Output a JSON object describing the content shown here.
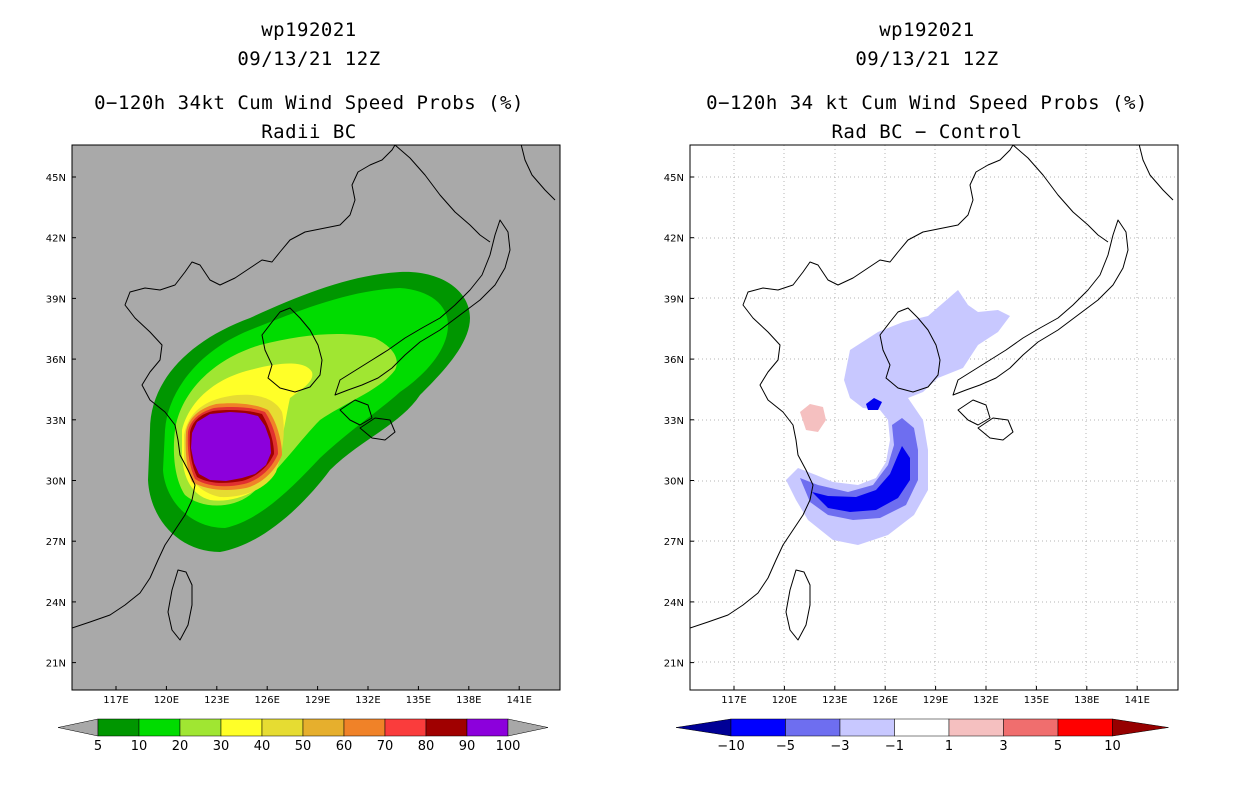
{
  "left": {
    "title_id": "wp192021",
    "title_date": "09/13/21 12Z",
    "title_main": "0−120h 34kt Cum Wind Speed Probs (%)",
    "title_sub": "Radii BC",
    "lat_labels": [
      "45N",
      "42N",
      "39N",
      "36N",
      "33N",
      "30N",
      "27N",
      "24N",
      "21N"
    ],
    "lon_labels": [
      "117E",
      "120E",
      "123E",
      "126E",
      "129E",
      "132E",
      "135E",
      "138E",
      "141E"
    ],
    "colorbar": {
      "labels": [
        "5",
        "10",
        "20",
        "30",
        "40",
        "50",
        "60",
        "70",
        "80",
        "90",
        "100"
      ],
      "colors": [
        "#009600",
        "#00dc00",
        "#a0e632",
        "#ffff28",
        "#e6dc32",
        "#e6af2d",
        "#f08228",
        "#fa3c3c",
        "#a00000",
        "#8c00dc"
      ],
      "arrow_color": "#a8a8a8"
    },
    "background_color": "#a9a9a9"
  },
  "right": {
    "title_id": "wp192021",
    "title_date": "09/13/21 12Z",
    "title_main": "0−120h 34 kt Cum Wind Speed Probs (%)",
    "title_sub": "Rad BC − Control",
    "lat_labels": [
      "45N",
      "42N",
      "39N",
      "36N",
      "33N",
      "30N",
      "27N",
      "24N",
      "21N"
    ],
    "lon_labels": [
      "117E",
      "120E",
      "123E",
      "126E",
      "129E",
      "132E",
      "135E",
      "138E",
      "141E"
    ],
    "colorbar": {
      "labels": [
        "−10",
        "−5",
        "−3",
        "−1",
        "1",
        "3",
        "5",
        "10"
      ],
      "colors": [
        "#0000ff",
        "#6e6ef0",
        "#c8c8ff",
        "#ffffff",
        "#f5c0c0",
        "#f06e6e",
        "#ff0000"
      ],
      "low_arrow_color": "#000096",
      "high_arrow_color": "#960000"
    },
    "background_color": "#ffffff"
  }
}
